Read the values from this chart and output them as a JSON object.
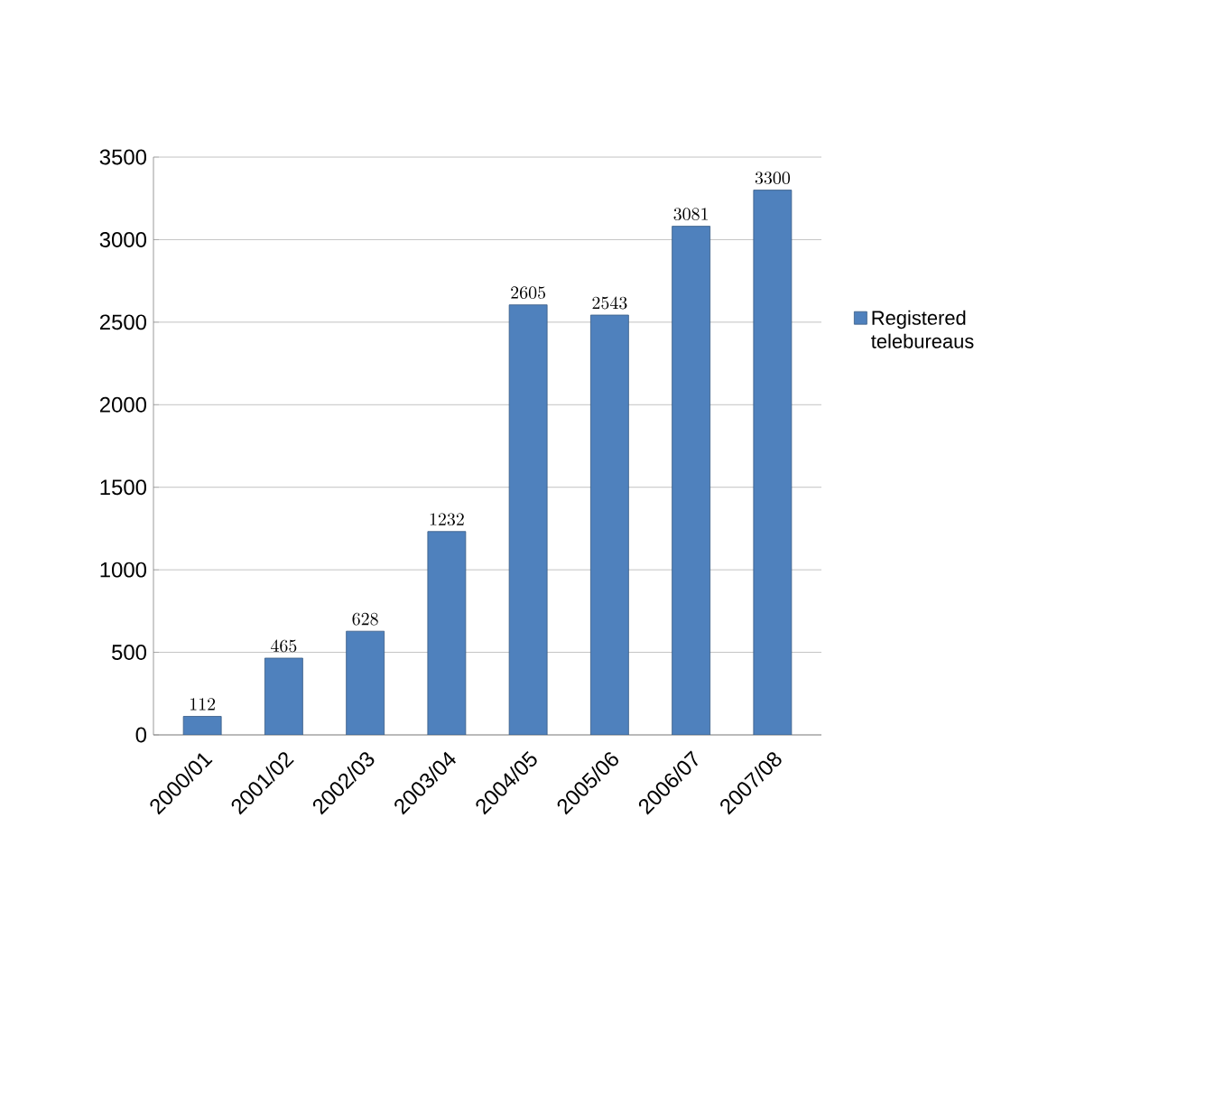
{
  "chart_data": {
    "type": "bar",
    "categories": [
      "2000/01",
      "2001/02",
      "2002/03",
      "2003/04",
      "2004/05",
      "2005/06",
      "2006/07",
      "2007/08"
    ],
    "series": [
      {
        "name": "Registered telebureaus",
        "color": "#4f81bd",
        "values": [
          112,
          465,
          628,
          1232,
          2605,
          2543,
          3081,
          3300
        ]
      }
    ],
    "ylim": [
      0,
      3500
    ],
    "yticks": [
      0,
      500,
      1000,
      1500,
      2000,
      2500,
      3000,
      3500
    ],
    "grid": "y",
    "legend": "right",
    "data_labels": true
  }
}
